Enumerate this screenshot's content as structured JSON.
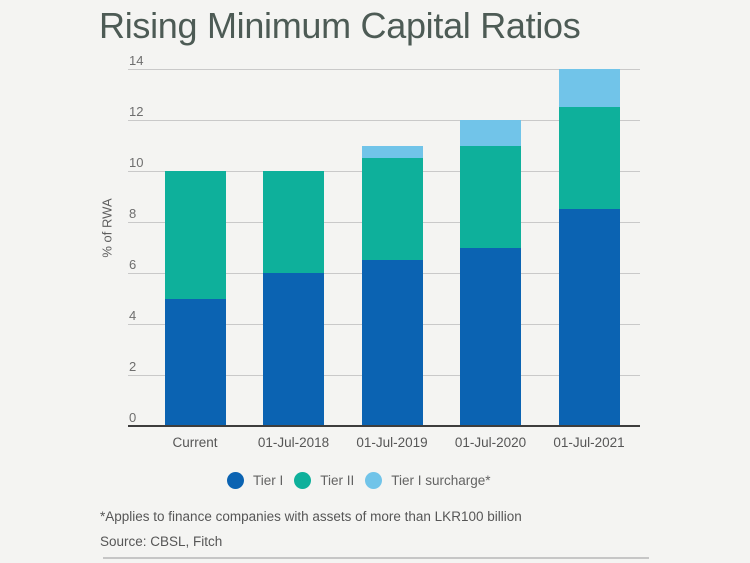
{
  "chart_data": {
    "type": "bar",
    "stacked": true,
    "title": "Rising Minimum Capital Ratios",
    "xlabel": "",
    "ylabel": "% of RWA",
    "categories": [
      "Current",
      "01-Jul-2018",
      "01-Jul-2019",
      "01-Jul-2020",
      "01-Jul-2021"
    ],
    "series": [
      {
        "name": "Tier I",
        "color": "#0b63b2",
        "values": [
          5,
          6,
          6.5,
          7,
          8.5
        ]
      },
      {
        "name": "Tier II",
        "color": "#0eb09b",
        "values": [
          5,
          4,
          4,
          4,
          4
        ]
      },
      {
        "name": "Tier I surcharge*",
        "color": "#71c4e9",
        "values": [
          0,
          0,
          0.5,
          1,
          1.5
        ]
      }
    ],
    "totals": [
      10,
      10,
      11,
      12,
      14
    ],
    "ylim": [
      0,
      14
    ],
    "yticks": [
      0,
      2,
      4,
      6,
      8,
      10,
      12,
      14
    ],
    "grid": true,
    "legend_position": "bottom"
  },
  "notes": {
    "footnote": "*Applies to finance companies with assets of more than LKR100 billion",
    "source": "Source: CBSL, Fitch"
  },
  "colors": {
    "background": "#f4f4f2",
    "title_text": "#4d5b55",
    "gridline": "#c9c9c9",
    "axis_line": "#3d3d3d",
    "tick_text": "#6e6e6e",
    "body_text": "#565656",
    "divider": "#c6c6c6"
  }
}
